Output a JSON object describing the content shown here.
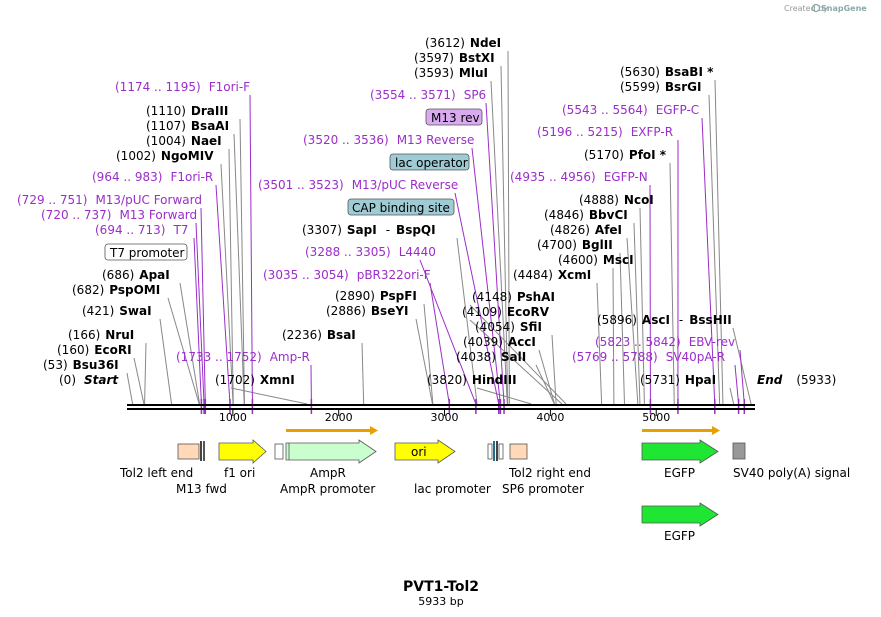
{
  "credit": {
    "prefix": "Created by",
    "brand": "SnapGene"
  },
  "plasmid": {
    "name": "PVT1-Tol2",
    "size_label": "5933 bp",
    "length": 5933
  },
  "colors": {
    "primer": "#9b2ec9",
    "ruler": "#000000",
    "orf_arrow": "#e8a000",
    "egfp": "#1ee632",
    "yellow": "#ffff00",
    "ampr": "#c9ffcf",
    "tol2": "#ffd9b8",
    "sv40": "#999999",
    "box_purple": "#d9aaf0",
    "box_teal": "#9ecbd4"
  },
  "ruler": {
    "ticks": [
      {
        "v": 1000,
        "label": "1000"
      },
      {
        "v": 2000,
        "label": "2000"
      },
      {
        "v": 3000,
        "label": "3000"
      },
      {
        "v": 4000,
        "label": "4000"
      },
      {
        "v": 5000,
        "label": "5000"
      }
    ]
  },
  "sites": [
    {
      "id": "start",
      "pos": "(0)",
      "name": "Start",
      "loc": 0,
      "kind": "end"
    },
    {
      "id": "bsu36i",
      "pos": "(53)",
      "name": "Bsu36I",
      "loc": 53
    },
    {
      "id": "ecori",
      "pos": "(160)",
      "name": "EcoRI",
      "loc": 160
    },
    {
      "id": "nrui",
      "pos": "(166)",
      "name": "NruI",
      "loc": 166
    },
    {
      "id": "swai",
      "pos": "(421)",
      "name": "SwaI",
      "loc": 421
    },
    {
      "id": "psppomi",
      "pos": "(682)",
      "name": "PspOMI",
      "loc": 682
    },
    {
      "id": "apai",
      "pos": "(686)",
      "name": "ApaI",
      "loc": 686
    },
    {
      "id": "ngomiv",
      "pos": "(1002)",
      "name": "NgoMIV",
      "loc": 1002
    },
    {
      "id": "naei",
      "pos": "(1004)",
      "name": "NaeI",
      "loc": 1004
    },
    {
      "id": "bsaai",
      "pos": "(1107)",
      "name": "BsaAI",
      "loc": 1107
    },
    {
      "id": "draiii",
      "pos": "(1110)",
      "name": "DraIII",
      "loc": 1110
    },
    {
      "id": "xmni",
      "pos": "(1702)",
      "name": "XmnI",
      "loc": 1702
    },
    {
      "id": "bsai",
      "pos": "(2236)",
      "name": "BsaI",
      "loc": 2236
    },
    {
      "id": "bseyi",
      "pos": "(2886)",
      "name": "BseYI",
      "loc": 2886
    },
    {
      "id": "pspfi",
      "pos": "(2890)",
      "name": "PspFI",
      "loc": 2890
    },
    {
      "id": "sapi",
      "pos": "(3307)",
      "name": "SapI",
      "loc": 3307,
      "extra": "BspQI"
    },
    {
      "id": "hindiii",
      "pos": "(3820)",
      "name": "HindIII",
      "loc": 3820
    },
    {
      "id": "sali",
      "pos": "(4038)",
      "name": "SalI",
      "loc": 4038
    },
    {
      "id": "acci",
      "pos": "(4039)",
      "name": "AccI",
      "loc": 4039
    },
    {
      "id": "sfii",
      "pos": "(4054)",
      "name": "SfiI",
      "loc": 4054
    },
    {
      "id": "ecorv",
      "pos": "(4109)",
      "name": "EcoRV",
      "loc": 4109
    },
    {
      "id": "pshai",
      "pos": "(4148)",
      "name": "PshAI",
      "loc": 4148
    },
    {
      "id": "mlui",
      "pos": "(3593)",
      "name": "MluI",
      "loc": 3593
    },
    {
      "id": "bstxi",
      "pos": "(3597)",
      "name": "BstXI",
      "loc": 3597
    },
    {
      "id": "ndei",
      "pos": "(3612)",
      "name": "NdeI",
      "loc": 3612
    },
    {
      "id": "xcmi",
      "pos": "(4484)",
      "name": "XcmI",
      "loc": 4484
    },
    {
      "id": "msci",
      "pos": "(4600)",
      "name": "MscI",
      "loc": 4600
    },
    {
      "id": "bglii",
      "pos": "(4700)",
      "name": "BglII",
      "loc": 4700
    },
    {
      "id": "afei",
      "pos": "(4826)",
      "name": "AfeI",
      "loc": 4826
    },
    {
      "id": "bbvci",
      "pos": "(4846)",
      "name": "BbvCI",
      "loc": 4846
    },
    {
      "id": "ncoi",
      "pos": "(4888)",
      "name": "NcoI",
      "loc": 4888
    },
    {
      "id": "pfoi",
      "pos": "(5170)",
      "name": "PfoI *",
      "loc": 5170
    },
    {
      "id": "bsrgi",
      "pos": "(5599)",
      "name": "BsrGI",
      "loc": 5599
    },
    {
      "id": "bsabi",
      "pos": "(5630)",
      "name": "BsaBI *",
      "loc": 5630
    },
    {
      "id": "asci",
      "pos": "(5896)",
      "name": "AscI",
      "loc": 5896,
      "extra": "BssHII"
    },
    {
      "id": "hpai",
      "pos": "(5731)",
      "name": "HpaI",
      "loc": 5731
    },
    {
      "id": "end",
      "pos": "(5933)",
      "name": "End",
      "loc": 5933,
      "kind": "end"
    }
  ],
  "primers": [
    {
      "id": "f1ori-f",
      "range": "(1174 .. 1195)",
      "name": "F1ori-F",
      "loc": 1185
    },
    {
      "id": "f1ori-r",
      "range": "(964 .. 983)",
      "name": "F1ori-R",
      "loc": 973
    },
    {
      "id": "m13puc-fwd",
      "range": "(729 .. 751)",
      "name": "M13/pUC Forward",
      "loc": 740
    },
    {
      "id": "m13-fwd",
      "range": "(720 .. 737)",
      "name": "M13 Forward",
      "loc": 728
    },
    {
      "id": "t7",
      "range": "(694 .. 713)",
      "name": "T7",
      "loc": 703
    },
    {
      "id": "amp-r",
      "range": "(1733 .. 1752)",
      "name": "Amp-R",
      "loc": 1742
    },
    {
      "id": "sp6",
      "range": "(3554 .. 3571)",
      "name": "SP6",
      "loc": 3562
    },
    {
      "id": "m13-rev-primer",
      "range": "(3520 .. 3536)",
      "name": "M13 Reverse",
      "loc": 3528
    },
    {
      "id": "m13puc-rev",
      "range": "(3501 .. 3523)",
      "name": "M13/pUC Reverse",
      "loc": 3512
    },
    {
      "id": "l4440",
      "range": "(3288 .. 3305)",
      "name": "L4440",
      "loc": 3296
    },
    {
      "id": "pbr322ori-f",
      "range": "(3035 .. 3054)",
      "name": "pBR322ori-F",
      "loc": 3045
    },
    {
      "id": "egfp-c",
      "range": "(5543 .. 5564)",
      "name": "EGFP-C",
      "loc": 5553
    },
    {
      "id": "exfp-r",
      "range": "(5196 .. 5215)",
      "name": "EXFP-R",
      "loc": 5205
    },
    {
      "id": "egfp-n",
      "range": "(4935 .. 4956)",
      "name": "EGFP-N",
      "loc": 4945
    },
    {
      "id": "ebv-rev",
      "range": "(5823 .. 5842)",
      "name": "EBV-rev",
      "loc": 5832
    },
    {
      "id": "sv40pa-r",
      "range": "(5769 .. 5788)",
      "name": "SV40pA-R",
      "loc": 5778
    }
  ],
  "boxes": [
    {
      "id": "t7-promoter",
      "label": "T7 promoter",
      "style": "white"
    },
    {
      "id": "m13-rev",
      "label": "M13 rev",
      "style": "purple"
    },
    {
      "id": "lac-operator",
      "label": "lac operator",
      "style": "teal"
    },
    {
      "id": "cap-binding-site",
      "label": "CAP binding site",
      "style": "teal"
    }
  ],
  "features": [
    {
      "id": "tol2-left-end",
      "label": "Tol2 left end"
    },
    {
      "id": "m13-fwd-feature",
      "label": "M13 fwd"
    },
    {
      "id": "f1-ori",
      "label": "f1 ori"
    },
    {
      "id": "ampr",
      "label": "AmpR"
    },
    {
      "id": "ampr-promoter",
      "label": "AmpR promoter"
    },
    {
      "id": "ori",
      "label": "ori",
      "inner": "ori"
    },
    {
      "id": "lac-promoter",
      "label": "lac promoter"
    },
    {
      "id": "tol2-right-end",
      "label": "Tol2 right end"
    },
    {
      "id": "sp6-promoter",
      "label": "SP6 promoter"
    },
    {
      "id": "egfp",
      "label": "EGFP"
    },
    {
      "id": "sv40-polya",
      "label": "SV40 poly(A) signal"
    },
    {
      "id": "egfp-2",
      "label": "EGFP"
    }
  ]
}
